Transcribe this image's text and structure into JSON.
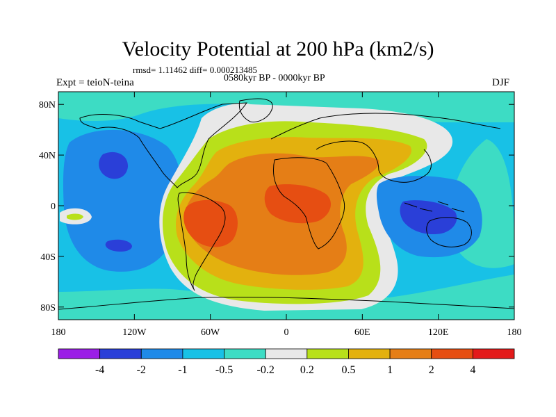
{
  "title": "Velocity Potential at 200 hPa (km2/s)",
  "stats_line": "rmsd= 1.11462 diff= 0.000213485",
  "period_line": "0580kyr BP - 0000kyr BP",
  "experiment_label": "Expt = teioN-teina",
  "season_label": "DJF",
  "map": {
    "projection": "cylindrical-equidistant",
    "lon_range": [
      -180,
      180
    ],
    "lat_range": [
      -90,
      90
    ],
    "y_tick_labels": [
      "80N",
      "40N",
      "0",
      "40S",
      "80S"
    ],
    "y_tick_lats": [
      80,
      40,
      0,
      -40,
      -80
    ],
    "x_tick_labels": [
      "180",
      "120W",
      "60W",
      "0",
      "60E",
      "120E",
      "180"
    ],
    "x_tick_lons": [
      -180,
      -120,
      -60,
      0,
      60,
      120,
      180
    ],
    "coastlines": true
  },
  "colorbar": {
    "colors": [
      "#9b1ee6",
      "#2a3fd8",
      "#1f8ae8",
      "#18c1e6",
      "#3ddcc4",
      "#e8e8e8",
      "#b8e01a",
      "#e3b10e",
      "#e57e16",
      "#e64e12",
      "#e31a1a"
    ],
    "labels": [
      "-4",
      "-2",
      "-1",
      "-0.5",
      "-0.2",
      "0.2",
      "0.5",
      "1",
      "2",
      "4"
    ]
  }
}
